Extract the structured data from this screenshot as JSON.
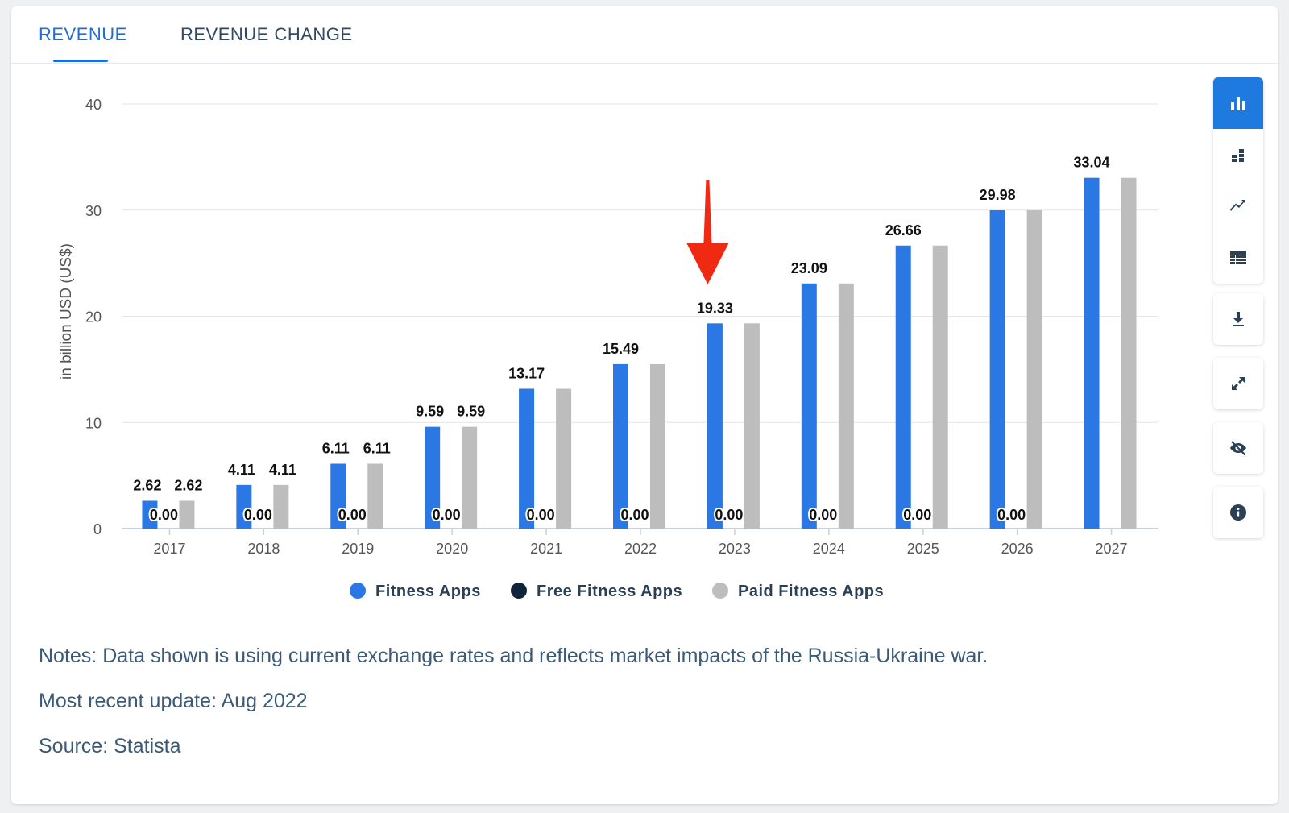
{
  "tabs": [
    {
      "label": "REVENUE",
      "active": true
    },
    {
      "label": "REVENUE CHANGE",
      "active": false
    }
  ],
  "chart_data": {
    "type": "bar",
    "categories": [
      "2017",
      "2018",
      "2019",
      "2020",
      "2021",
      "2022",
      "2023",
      "2024",
      "2025",
      "2026",
      "2027"
    ],
    "series": [
      {
        "name": "Fitness Apps",
        "color": "#2b78e4",
        "values": [
          2.62,
          4.11,
          6.11,
          9.59,
          13.17,
          15.49,
          19.33,
          23.09,
          26.66,
          29.98,
          33.04
        ]
      },
      {
        "name": "Free Fitness Apps",
        "color": "#0f2438",
        "values": [
          0,
          0,
          0,
          0,
          0,
          0,
          0,
          0,
          0,
          0,
          0
        ]
      },
      {
        "name": "Paid Fitness Apps",
        "color": "#bdbdbd",
        "values": [
          2.62,
          4.11,
          6.11,
          9.59,
          13.17,
          15.49,
          19.33,
          23.09,
          26.66,
          29.98,
          33.04
        ]
      }
    ],
    "data_labels": {
      "Fitness Apps": [
        "2.62",
        "4.11",
        "6.11",
        "9.59",
        "13.17",
        "15.49",
        "19.33",
        "23.09",
        "26.66",
        "29.98",
        "33.04"
      ],
      "Free Fitness Apps": [
        "0.00",
        "0.00",
        "0.00",
        "0.00",
        "0.00",
        "0.00",
        "0.00",
        "0.00",
        "0.00",
        "0.00",
        ""
      ],
      "Paid Fitness Apps": [
        "2.62",
        "4.11",
        "6.11",
        "9.59",
        "",
        "",
        "",
        "",
        "",
        "",
        ""
      ]
    },
    "ylabel": "in billion USD (US$)",
    "ylim": [
      0,
      40
    ],
    "yticks": [
      0,
      10,
      20,
      30,
      40
    ],
    "grid": true,
    "legend_position": "bottom",
    "annotation": {
      "type": "arrow",
      "color": "#f02a12",
      "category": "2023"
    }
  },
  "sidebar_icons": [
    "bar-chart-icon",
    "stacked-bar-icon",
    "trend-line-icon",
    "table-icon",
    "download-icon",
    "fullscreen-icon",
    "hide-icon",
    "info-icon"
  ],
  "notes": {
    "line1": "Notes: Data shown is using current exchange rates and reflects market impacts of the Russia-Ukraine war.",
    "line2": "Most recent update: Aug 2022",
    "line3": "Source: Statista"
  }
}
